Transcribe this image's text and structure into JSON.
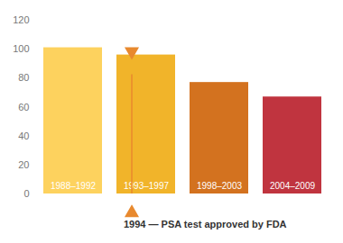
{
  "chart_data": {
    "type": "bar",
    "categories": [
      "1988–1992",
      "1993–1997",
      "1998–2003",
      "2004–2009"
    ],
    "values": [
      101,
      96,
      77,
      67
    ],
    "colors": [
      "#FDD25E",
      "#F1B42A",
      "#D3721F",
      "#C0343F"
    ],
    "ylim": [
      0,
      120
    ],
    "yticks": [
      0,
      20,
      40,
      60,
      80,
      100,
      120
    ],
    "grid": false,
    "annotations": [
      {
        "text": "1994 — PSA test approved by FDA",
        "category": "1993–1997"
      }
    ]
  }
}
